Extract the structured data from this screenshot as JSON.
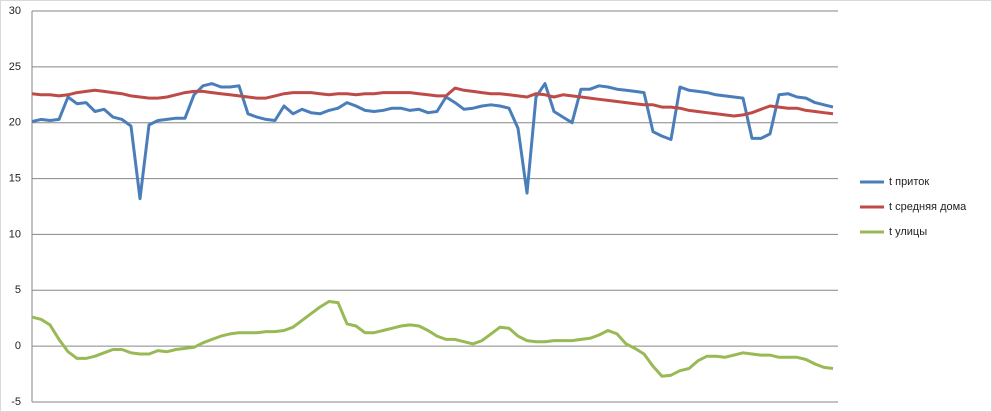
{
  "chart_data": {
    "type": "line",
    "categories": [
      null,
      null,
      null,
      null,
      null,
      null,
      null,
      null,
      null,
      null,
      null,
      null,
      null,
      null,
      null,
      null,
      null,
      null,
      null,
      null,
      null,
      null,
      null,
      null,
      null,
      null,
      null,
      null,
      null,
      null,
      null,
      null,
      null,
      null,
      null,
      null,
      null,
      null,
      null,
      null,
      null,
      null,
      null,
      null,
      null,
      null,
      null,
      null,
      null,
      null,
      null,
      null,
      null,
      null,
      null,
      null,
      null,
      null,
      null,
      null,
      null,
      null,
      null,
      null,
      null,
      null,
      null,
      null,
      null,
      null,
      null,
      null,
      null,
      null,
      null,
      null,
      null,
      null,
      null,
      null,
      null,
      null,
      null,
      null,
      null,
      null,
      null,
      null,
      null,
      null
    ],
    "series": [
      {
        "name": "t приток",
        "color": "#4a7ebb",
        "values": [
          20.1,
          20.3,
          20.2,
          20.3,
          22.3,
          21.7,
          21.8,
          21.0,
          21.2,
          20.5,
          20.3,
          19.7,
          13.2,
          19.8,
          20.2,
          20.3,
          20.4,
          20.4,
          22.5,
          23.3,
          23.5,
          23.2,
          23.2,
          23.3,
          20.8,
          20.5,
          20.3,
          20.2,
          21.5,
          20.8,
          21.2,
          20.9,
          20.8,
          21.1,
          21.3,
          21.8,
          21.5,
          21.1,
          21.0,
          21.1,
          21.3,
          21.3,
          21.1,
          21.2,
          20.9,
          21.0,
          22.3,
          21.8,
          21.2,
          21.3,
          21.5,
          21.6,
          21.5,
          21.3,
          19.5,
          13.7,
          22.3,
          23.5,
          21.0,
          20.5,
          20.0,
          23.0,
          23.0,
          23.3,
          23.2,
          23.0,
          22.9,
          22.8,
          22.7,
          19.2,
          18.8,
          18.5,
          23.2,
          22.9,
          22.8,
          22.7,
          22.5,
          22.4,
          22.3,
          22.2,
          18.6,
          18.6,
          19.0,
          22.5,
          22.6,
          22.3,
          22.2,
          21.8,
          21.6,
          21.4
        ]
      },
      {
        "name": "t средняя дома",
        "color": "#be4b48",
        "values": [
          22.6,
          22.5,
          22.5,
          22.4,
          22.5,
          22.7,
          22.8,
          22.9,
          22.8,
          22.7,
          22.6,
          22.4,
          22.3,
          22.2,
          22.2,
          22.3,
          22.5,
          22.7,
          22.8,
          22.8,
          22.7,
          22.6,
          22.5,
          22.4,
          22.3,
          22.2,
          22.2,
          22.4,
          22.6,
          22.7,
          22.7,
          22.7,
          22.6,
          22.5,
          22.6,
          22.6,
          22.5,
          22.6,
          22.6,
          22.7,
          22.7,
          22.7,
          22.7,
          22.6,
          22.5,
          22.4,
          22.4,
          23.1,
          22.9,
          22.8,
          22.7,
          22.6,
          22.6,
          22.5,
          22.4,
          22.3,
          22.6,
          22.5,
          22.3,
          22.5,
          22.4,
          22.3,
          22.2,
          22.1,
          22.0,
          21.9,
          21.8,
          21.7,
          21.6,
          21.6,
          21.4,
          21.4,
          21.3,
          21.1,
          21.0,
          20.9,
          20.8,
          20.7,
          20.6,
          20.7,
          20.9,
          21.2,
          21.5,
          21.4,
          21.3,
          21.3,
          21.1,
          21.0,
          20.9,
          20.8
        ]
      },
      {
        "name": "t улицы",
        "color": "#98b954",
        "values": [
          2.6,
          2.4,
          1.9,
          0.6,
          -0.5,
          -1.1,
          -1.1,
          -0.9,
          -0.6,
          -0.3,
          -0.3,
          -0.6,
          -0.7,
          -0.7,
          -0.4,
          -0.5,
          -0.3,
          -0.2,
          -0.1,
          0.3,
          0.6,
          0.9,
          1.1,
          1.2,
          1.2,
          1.2,
          1.3,
          1.3,
          1.4,
          1.7,
          2.3,
          2.9,
          3.5,
          4.0,
          3.9,
          2.0,
          1.8,
          1.2,
          1.2,
          1.4,
          1.6,
          1.8,
          1.9,
          1.8,
          1.4,
          0.9,
          0.6,
          0.6,
          0.4,
          0.2,
          0.5,
          1.1,
          1.7,
          1.6,
          0.9,
          0.5,
          0.4,
          0.4,
          0.5,
          0.5,
          0.5,
          0.6,
          0.7,
          1.0,
          1.4,
          1.1,
          0.2,
          -0.2,
          -0.7,
          -1.8,
          -2.7,
          -2.6,
          -2.2,
          -2.0,
          -1.3,
          -0.9,
          -0.9,
          -1.0,
          -0.8,
          -0.6,
          -0.7,
          -0.8,
          -0.8,
          -1.0,
          -1.0,
          -1.0,
          -1.2,
          -1.6,
          -1.9,
          -2.0
        ]
      }
    ],
    "ylim": [
      -5,
      30
    ],
    "yticks": [
      -5,
      0,
      5,
      10,
      15,
      20,
      25,
      30
    ],
    "grid": true,
    "legend": "right"
  }
}
